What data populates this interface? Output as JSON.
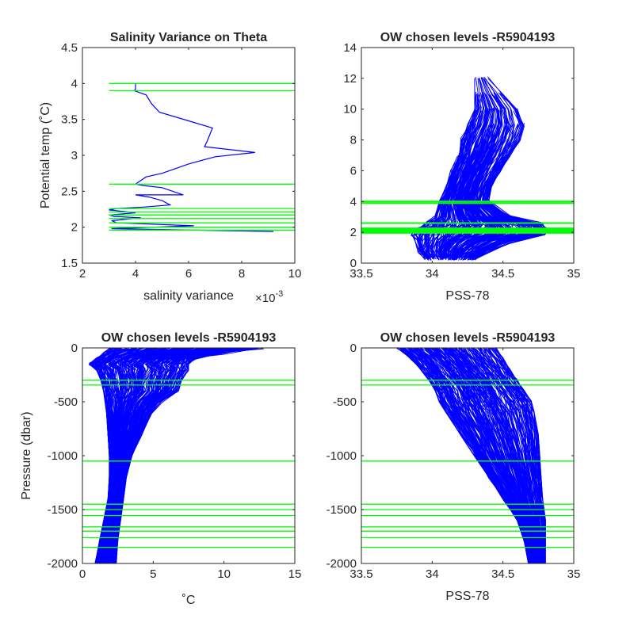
{
  "figure": {
    "colors": {
      "profile": "#0000ff",
      "level": "#00ff00",
      "axis": "#262626",
      "background": "#ffffff"
    }
  },
  "chart_data": [
    {
      "id": "p1",
      "type": "line",
      "title": "Salinity Variance on Theta",
      "xlabel": "salinity variance",
      "xexponent_label": "×10",
      "xexponent_power": "-3",
      "ylabel": "Potential temp (˚C)",
      "xlim": [
        2,
        10
      ],
      "ylim": [
        1.5,
        4.5
      ],
      "xticks": [
        2,
        4,
        6,
        8,
        10
      ],
      "yticks": [
        1.5,
        2,
        2.5,
        3,
        3.5,
        4,
        4.5
      ],
      "xtick_labels": [
        "2",
        "4",
        "6",
        "8",
        "10"
      ],
      "ytick_labels": [
        "1.5",
        "2",
        "2.5",
        "3",
        "3.5",
        "4",
        "4.5"
      ],
      "variance_curve": {
        "x": [
          4.0,
          4.0,
          3.95,
          4.4,
          4.6,
          4.9,
          6.0,
          6.9,
          6.7,
          6.6,
          8.5,
          7.0,
          6.0,
          5.0,
          4.4,
          4.0,
          4.3,
          5.0,
          5.8,
          4.0,
          4.5,
          5.0,
          5.3,
          4.3,
          3.3,
          3.0,
          4.0,
          3.0,
          3.2,
          4.2,
          3.1,
          3.3,
          6.2,
          3.1,
          9.2
        ],
        "y": [
          4.0,
          3.92,
          3.9,
          3.84,
          3.72,
          3.6,
          3.48,
          3.38,
          3.2,
          3.12,
          3.04,
          2.98,
          2.88,
          2.75,
          2.7,
          2.6,
          2.58,
          2.55,
          2.45,
          2.45,
          2.42,
          2.37,
          2.31,
          2.28,
          2.26,
          2.24,
          2.2,
          2.17,
          2.15,
          2.13,
          2.09,
          2.06,
          2.02,
          1.98,
          1.94
        ]
      },
      "levels": {
        "axis": "y",
        "x_range": [
          3.0,
          10.0
        ],
        "values": [
          4.0,
          3.9,
          2.6,
          2.26,
          2.21,
          2.17,
          2.12,
          2.06,
          2.0,
          1.96
        ]
      }
    },
    {
      "id": "p2",
      "type": "line",
      "title": "OW chosen levels -R5904193",
      "xlabel": "PSS-78",
      "ylabel": "",
      "xlim": [
        33.5,
        35
      ],
      "ylim": [
        0,
        14
      ],
      "xticks": [
        33.5,
        34,
        34.5,
        35
      ],
      "yticks": [
        0,
        2,
        4,
        6,
        8,
        10,
        12,
        14
      ],
      "xtick_labels": [
        "33.5",
        "34",
        "34.5",
        "35"
      ],
      "ytick_labels": [
        "0",
        "2",
        "4",
        "6",
        "8",
        "10",
        "12",
        "14"
      ],
      "profiles": {
        "count": 230,
        "y_points": [
          0.3,
          0.8,
          1.4,
          1.9,
          2.2,
          2.5,
          3.0,
          4.0,
          5.0,
          6.0,
          7.0,
          8.0,
          9.0,
          10.0,
          11.0,
          12.0
        ],
        "x_envelope_min": [
          33.95,
          33.9,
          33.88,
          33.85,
          33.9,
          33.95,
          34.02,
          34.05,
          34.1,
          34.13,
          34.18,
          34.2,
          34.25,
          34.3,
          34.3,
          34.3
        ],
        "x_envelope_max": [
          34.3,
          34.4,
          34.55,
          34.8,
          34.82,
          34.78,
          34.55,
          34.4,
          34.42,
          34.48,
          34.55,
          34.62,
          34.65,
          34.6,
          34.5,
          34.4
        ],
        "top_y_range": [
          4.0,
          12.6
        ]
      },
      "levels": {
        "axis": "y",
        "x_range": [
          33.5,
          35.0
        ],
        "values": [
          4.0,
          3.9,
          2.6,
          2.26,
          2.21,
          2.17,
          2.12,
          2.06,
          2.0,
          1.96
        ]
      }
    },
    {
      "id": "p3",
      "type": "line",
      "title": "OW chosen levels -R5904193",
      "xlabel": "˚C",
      "ylabel": "Pressure (dbar)",
      "xlim": [
        0,
        15
      ],
      "ylim": [
        -2000,
        0
      ],
      "xticks": [
        0,
        5,
        10,
        15
      ],
      "yticks": [
        -2000,
        -1500,
        -1000,
        -500,
        0
      ],
      "xtick_labels": [
        "0",
        "5",
        "10",
        "15"
      ],
      "ytick_labels": [
        "-2000",
        "-1500",
        "-1000",
        "-500",
        "0"
      ],
      "profiles": {
        "count": 230,
        "p_points": [
          0,
          -50,
          -100,
          -150,
          -200,
          -300,
          -400,
          -500,
          -600,
          -800,
          -1000,
          -1200,
          -1400,
          -1600,
          -1800,
          -2000
        ],
        "x_envelope_min": [
          2.0,
          1.5,
          1.0,
          0.5,
          1.0,
          1.3,
          1.5,
          1.6,
          1.7,
          1.8,
          1.9,
          1.9,
          1.8,
          1.5,
          1.2,
          0.9
        ],
        "x_envelope_max": [
          12.8,
          10.0,
          8.0,
          7.5,
          7.5,
          7.0,
          6.8,
          5.6,
          4.9,
          4.2,
          3.5,
          3.1,
          2.9,
          2.7,
          2.5,
          2.4
        ]
      },
      "levels": {
        "axis": "y",
        "x_range": [
          0,
          15
        ],
        "values": [
          -300,
          -345,
          -1050,
          -1450,
          -1500,
          -1555,
          -1660,
          -1700,
          -1760,
          -1850
        ]
      }
    },
    {
      "id": "p4",
      "type": "line",
      "title": "OW chosen levels -R5904193",
      "xlabel": "PSS-78",
      "ylabel": "",
      "xlim": [
        33.5,
        35
      ],
      "ylim": [
        -2000,
        0
      ],
      "xticks": [
        33.5,
        34,
        34.5,
        35
      ],
      "yticks": [
        -2000,
        -1500,
        -1000,
        -500,
        0
      ],
      "xtick_labels": [
        "33.5",
        "34",
        "34.5",
        "35"
      ],
      "ytick_labels": [
        "-2000",
        "-1500",
        "-1000",
        "-500",
        "0"
      ],
      "profiles": {
        "count": 230,
        "p_points": [
          0,
          -100,
          -200,
          -300,
          -400,
          -500,
          -600,
          -800,
          -1000,
          -1200,
          -1400,
          -1600,
          -1800,
          -2000
        ],
        "x_envelope_min": [
          33.75,
          33.85,
          33.92,
          33.98,
          34.02,
          34.05,
          34.1,
          34.2,
          34.3,
          34.4,
          34.5,
          34.6,
          34.65,
          34.68
        ],
        "x_envelope_max": [
          34.45,
          34.5,
          34.55,
          34.6,
          34.65,
          34.7,
          34.72,
          34.75,
          34.76,
          34.77,
          34.78,
          34.8,
          34.8,
          34.8
        ]
      },
      "levels": {
        "axis": "y",
        "x_range": [
          33.5,
          35.0
        ],
        "values": [
          -300,
          -345,
          -1050,
          -1450,
          -1500,
          -1555,
          -1660,
          -1700,
          -1760,
          -1850
        ]
      }
    }
  ]
}
